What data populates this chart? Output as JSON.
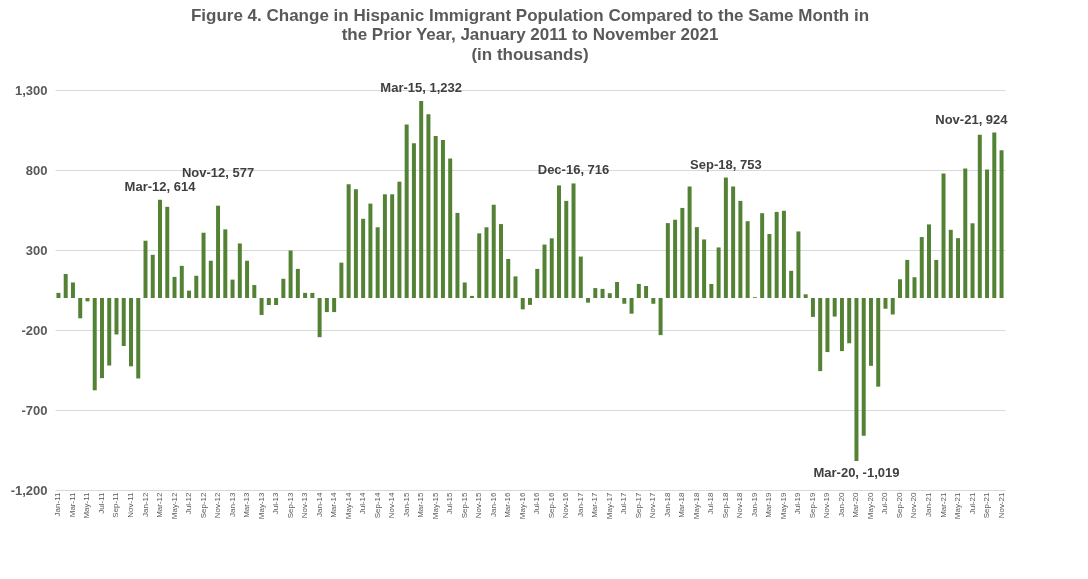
{
  "chart_data": {
    "type": "bar",
    "title": "Figure 4. Change in Hispanic Immigrant Population Compared to the Same Month in the Prior Year, January 2011 to November 2021",
    "subtitle": "(in thousands)",
    "categories": [
      "Jan-11",
      null,
      "Mar-11",
      null,
      "May-11",
      null,
      "Jul-11",
      null,
      "Sep-11",
      null,
      "Nov-11",
      null,
      "Jan-12",
      null,
      "Mar-12",
      null,
      "May-12",
      null,
      "Jul-12",
      null,
      "Sep-12",
      null,
      "Nov-12",
      null,
      "Jan-13",
      null,
      "Mar-13",
      null,
      "May-13",
      null,
      "Jul-13",
      null,
      "Sep-13",
      null,
      "Nov-13",
      null,
      "Jan-14",
      null,
      "Mar-14",
      null,
      "May-14",
      null,
      "Jul-14",
      null,
      "Sep-14",
      null,
      "Nov-14",
      null,
      "Jan-15",
      null,
      "Mar-15",
      null,
      "May-15",
      null,
      "Jul-15",
      null,
      "Sep-15",
      null,
      "Nov-15",
      null,
      "Jan-16",
      null,
      "Mar-16",
      null,
      "May-16",
      null,
      "Jul-16",
      null,
      "Sep-16",
      null,
      "Nov-16",
      null,
      "Jan-17",
      null,
      "Mar-17",
      null,
      "May-17",
      null,
      "Jul-17",
      null,
      "Sep-17",
      null,
      "Nov-17",
      null,
      "Jan-18",
      null,
      "Mar-18",
      null,
      "May-18",
      null,
      "Jul-18",
      null,
      "Sep-18",
      null,
      "Nov-18",
      null,
      "Jan-19",
      null,
      "Mar-19",
      null,
      "May-19",
      null,
      "Jul-19",
      null,
      "Sep-19",
      null,
      "Nov-19",
      null,
      "Jan-20",
      null,
      "Mar-20",
      null,
      "May-20",
      null,
      "Jul-20",
      null,
      "Sep-20",
      null,
      "Nov-20",
      null,
      "Jan-21",
      null,
      "Mar-21",
      null,
      "May-21",
      null,
      "Jul-21",
      null,
      "Sep-21",
      null,
      "Nov-21"
    ],
    "values": [
      32,
      150,
      97,
      -127,
      -21,
      -577,
      -501,
      -422,
      -228,
      -300,
      -427,
      -503,
      358,
      270,
      614,
      570,
      132,
      201,
      46,
      139,
      408,
      233,
      577,
      429,
      115,
      341,
      233,
      81,
      -106,
      -44,
      -44,
      120,
      297,
      182,
      32,
      32,
      -245,
      -88,
      -88,
      221,
      711,
      680,
      495,
      590,
      442,
      648,
      648,
      727,
      1085,
      967,
      1232,
      1148,
      1013,
      987,
      872,
      532,
      97,
      13,
      404,
      442,
      583,
      462,
      244,
      135,
      -71,
      -43,
      182,
      334,
      373,
      704,
      607,
      716,
      259,
      -29,
      62,
      57,
      30,
      100,
      -36,
      -98,
      88,
      75,
      -36,
      -232,
      468,
      489,
      563,
      697,
      443,
      366,
      88,
      316,
      753,
      697,
      607,
      480,
      5,
      530,
      400,
      538,
      545,
      170,
      416,
      23,
      -118,
      -457,
      -338,
      -116,
      -332,
      -283,
      -1019,
      -861,
      -424,
      -554,
      -67,
      -103,
      117,
      238,
      130,
      381,
      460,
      238,
      778,
      426,
      374,
      809,
      467,
      1020,
      803,
      1034,
      924
    ],
    "color": "#548235",
    "ylim": [
      -1200,
      1300
    ],
    "yticks": [
      {
        "value": -1200,
        "label": "-1,200"
      },
      -700,
      -200,
      300,
      800,
      {
        "value": 1300,
        "label": "1,300"
      }
    ],
    "grid": "y",
    "annotations": [
      {
        "text": "Mar-12, 614",
        "x": "Mar-12",
        "y": 614
      },
      {
        "text": "Nov-12, 577",
        "x": "Nov-12",
        "y": 577
      },
      {
        "text": "Mar-15, 1,232",
        "x": "Mar-15",
        "y": 1232
      },
      {
        "text": "Dec-16, 716",
        "y": 716
      },
      {
        "text": "Sep-18, 753",
        "x": "Sep-18",
        "y": 753
      },
      {
        "text": "Mar-20, -1,019",
        "x": "Mar-20",
        "y": -1019
      },
      {
        "text": "Nov-21, 924",
        "x": "Nov-21",
        "y": 924
      }
    ]
  }
}
